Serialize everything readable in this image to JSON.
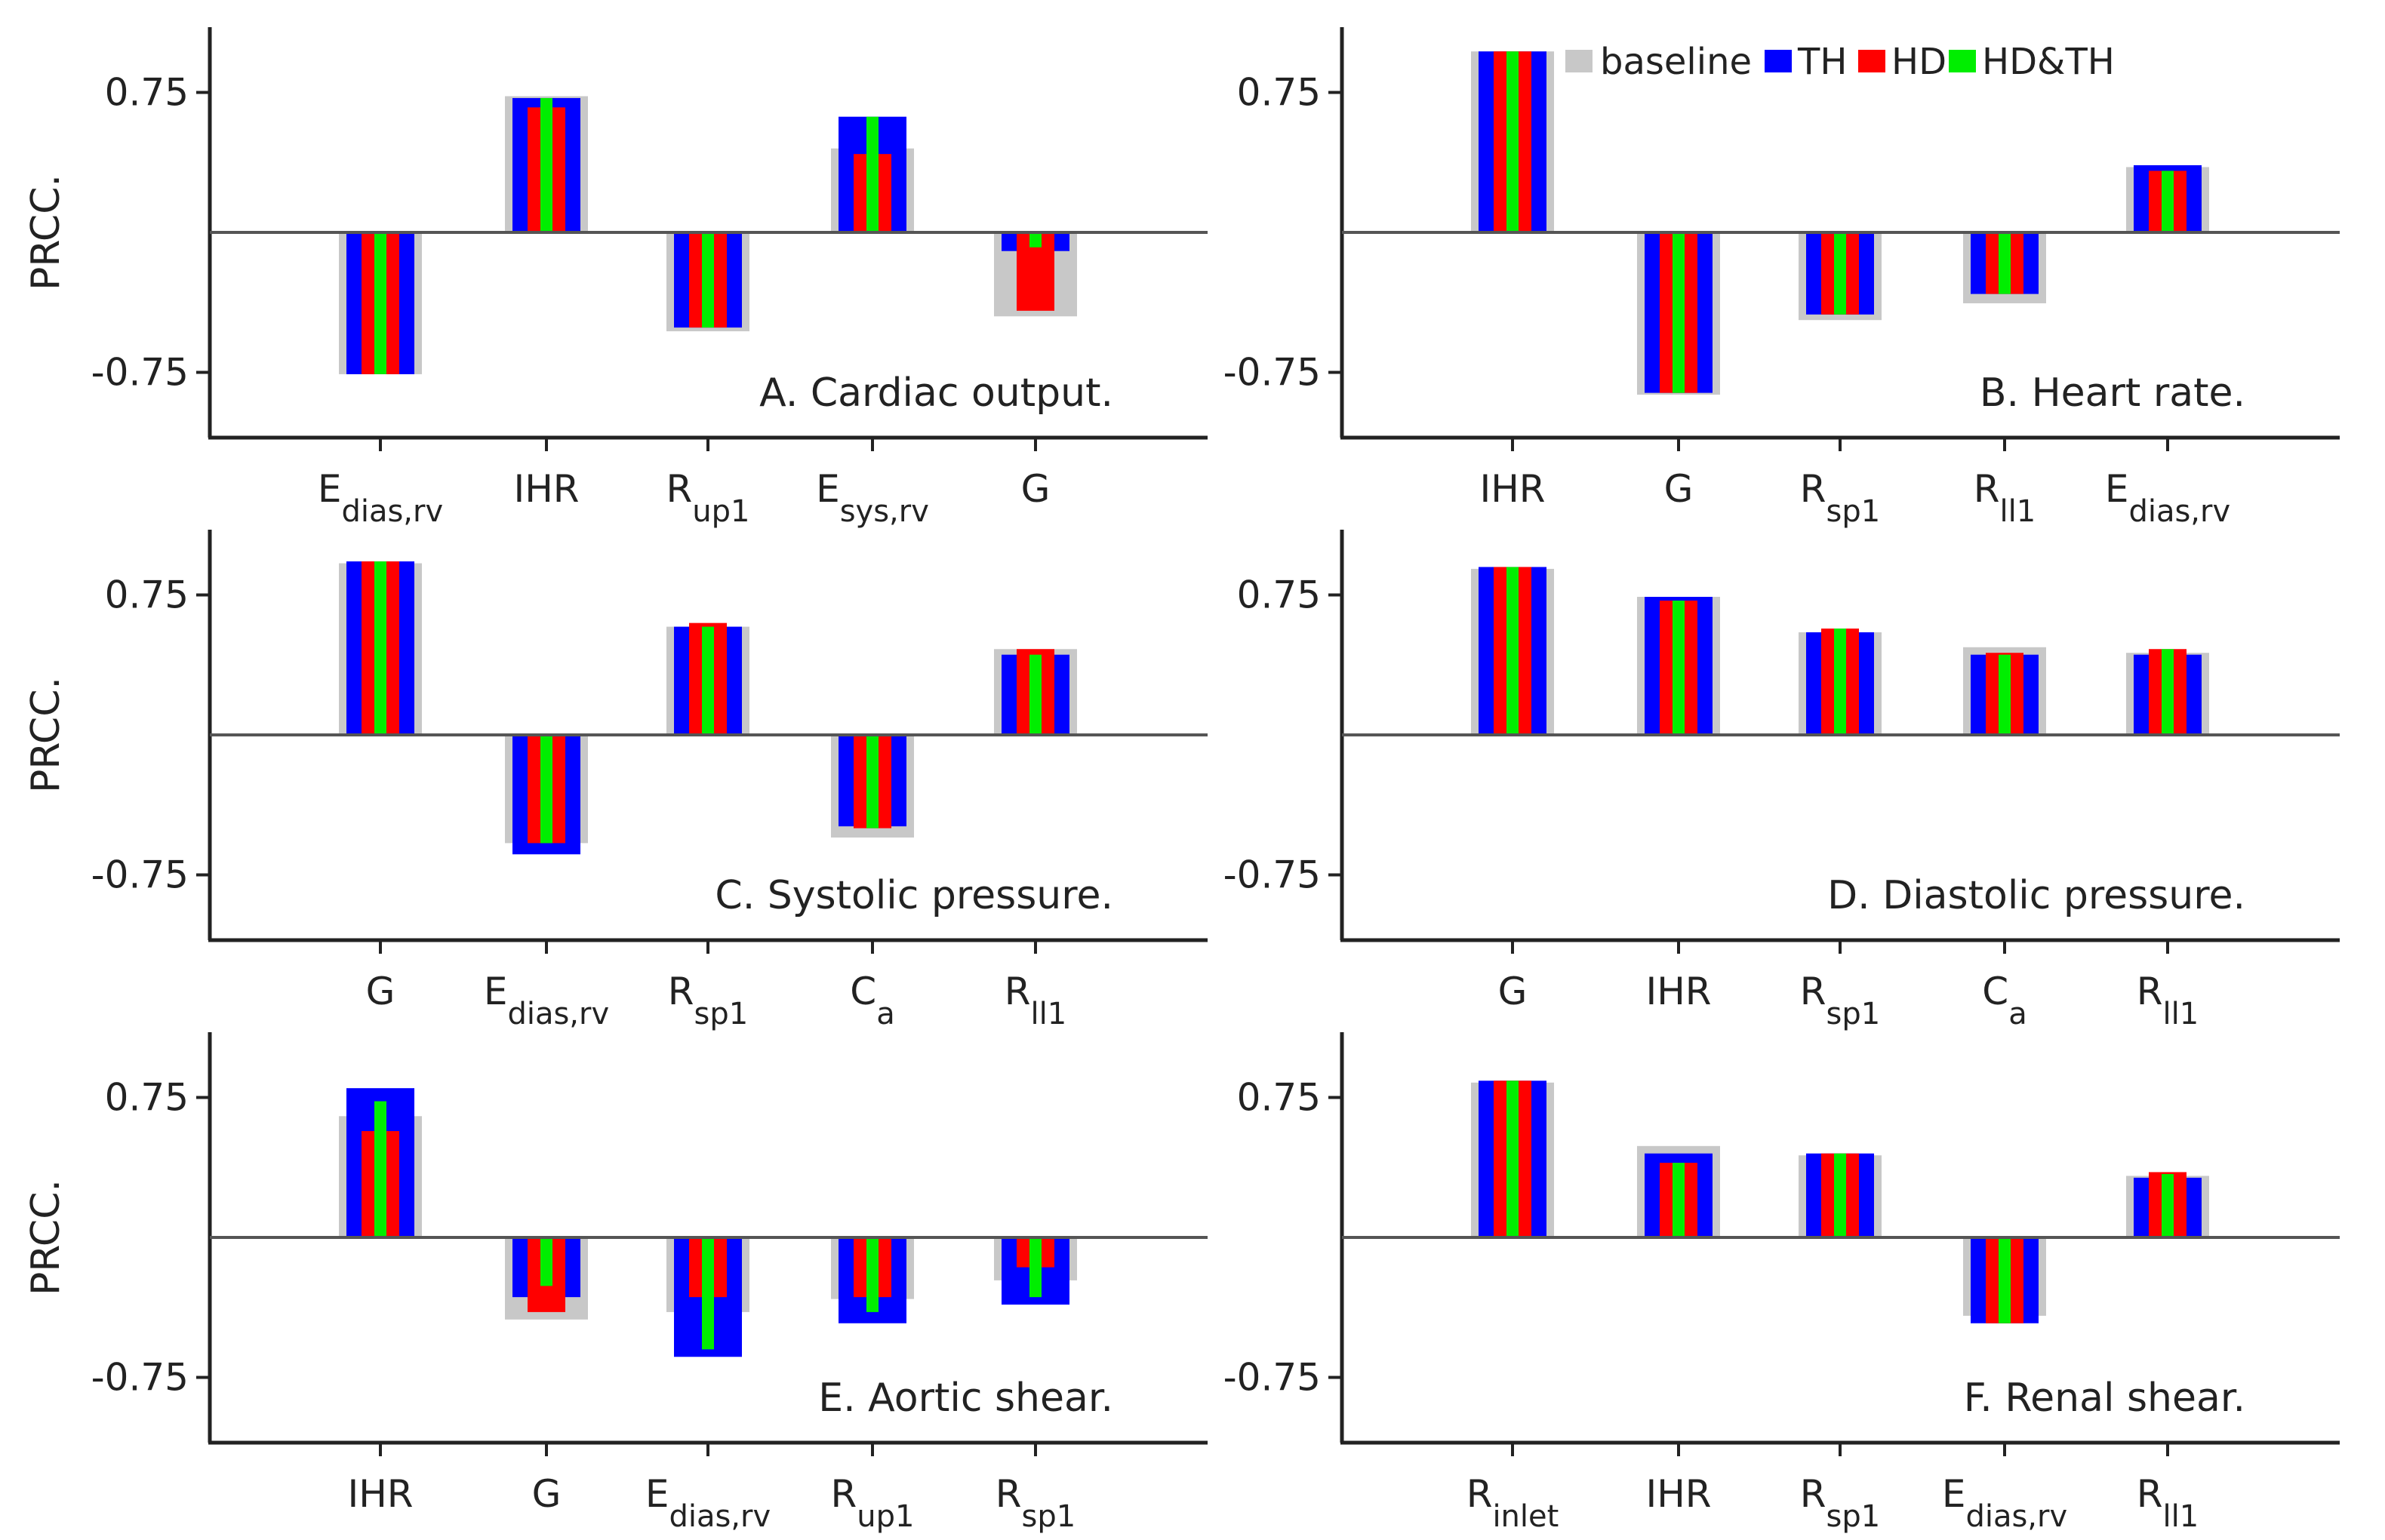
{
  "legend": {
    "entries": [
      {
        "key": "baseline",
        "label": "baseline",
        "color": "#c8c8c8"
      },
      {
        "key": "TH",
        "label": "TH",
        "color": "#0000ff"
      },
      {
        "key": "HD",
        "label": "HD",
        "color": "#ff0000"
      },
      {
        "key": "HDTH",
        "label": "HD&TH",
        "color": "#00ee00"
      }
    ]
  },
  "chart_data": [
    {
      "type": "bar",
      "title": "A. Cardiac output.",
      "ylabel": "PRCC.",
      "yticks": [
        "0.75",
        "-0.75"
      ],
      "ylim": [
        -1.1,
        1.1
      ],
      "categories": [
        {
          "main": "E",
          "sub": "dias,rv"
        },
        {
          "main": "IHR",
          "sub": ""
        },
        {
          "main": "R",
          "sub": "up1"
        },
        {
          "main": "E",
          "sub": "sys,rv"
        },
        {
          "main": "G",
          "sub": ""
        }
      ],
      "series": [
        {
          "name": "baseline",
          "values": [
            -0.76,
            0.73,
            -0.53,
            0.45,
            -0.45
          ]
        },
        {
          "name": "TH",
          "values": [
            -0.76,
            0.72,
            -0.51,
            0.62,
            -0.1
          ]
        },
        {
          "name": "HD",
          "values": [
            -0.76,
            0.67,
            -0.51,
            0.42,
            -0.42
          ]
        },
        {
          "name": "HD&TH",
          "values": [
            -0.76,
            0.72,
            -0.51,
            0.62,
            -0.08
          ]
        }
      ]
    },
    {
      "type": "bar",
      "title": "B. Heart rate.",
      "ylabel": "",
      "yticks": [
        "0.75",
        "-0.75"
      ],
      "ylim": [
        -1.1,
        1.1
      ],
      "categories": [
        {
          "main": "IHR",
          "sub": ""
        },
        {
          "main": "G",
          "sub": ""
        },
        {
          "main": "R",
          "sub": "sp1"
        },
        {
          "main": "R",
          "sub": "ll1"
        },
        {
          "main": "E",
          "sub": "dias,rv"
        }
      ],
      "series": [
        {
          "name": "baseline",
          "values": [
            0.97,
            -0.87,
            -0.47,
            -0.38,
            0.35
          ]
        },
        {
          "name": "TH",
          "values": [
            0.97,
            -0.86,
            -0.44,
            -0.33,
            0.36
          ]
        },
        {
          "name": "HD",
          "values": [
            0.97,
            -0.86,
            -0.44,
            -0.33,
            0.33
          ]
        },
        {
          "name": "HD&TH",
          "values": [
            0.97,
            -0.86,
            -0.44,
            -0.33,
            0.33
          ]
        }
      ]
    },
    {
      "type": "bar",
      "title": "C. Systolic pressure.",
      "ylabel": "PRCC.",
      "yticks": [
        "0.75",
        "-0.75"
      ],
      "ylim": [
        -1.1,
        1.1
      ],
      "categories": [
        {
          "main": "G",
          "sub": ""
        },
        {
          "main": "E",
          "sub": "dias,rv"
        },
        {
          "main": "R",
          "sub": "sp1"
        },
        {
          "main": "C",
          "sub": "a"
        },
        {
          "main": "R",
          "sub": "ll1"
        }
      ],
      "series": [
        {
          "name": "baseline",
          "values": [
            0.92,
            -0.58,
            0.58,
            -0.55,
            0.46
          ]
        },
        {
          "name": "TH",
          "values": [
            0.93,
            -0.64,
            0.58,
            -0.49,
            0.43
          ]
        },
        {
          "name": "HD",
          "values": [
            0.93,
            -0.58,
            0.6,
            -0.5,
            0.46
          ]
        },
        {
          "name": "HD&TH",
          "values": [
            0.93,
            -0.58,
            0.58,
            -0.5,
            0.43
          ]
        }
      ]
    },
    {
      "type": "bar",
      "title": "D. Diastolic pressure.",
      "ylabel": "",
      "yticks": [
        "0.75",
        "-0.75"
      ],
      "ylim": [
        -1.1,
        1.1
      ],
      "categories": [
        {
          "main": "G",
          "sub": ""
        },
        {
          "main": "IHR",
          "sub": ""
        },
        {
          "main": "R",
          "sub": "sp1"
        },
        {
          "main": "C",
          "sub": "a"
        },
        {
          "main": "R",
          "sub": "ll1"
        }
      ],
      "series": [
        {
          "name": "baseline",
          "values": [
            0.89,
            0.74,
            0.55,
            0.47,
            0.44
          ]
        },
        {
          "name": "TH",
          "values": [
            0.9,
            0.74,
            0.55,
            0.43,
            0.43
          ]
        },
        {
          "name": "HD",
          "values": [
            0.9,
            0.72,
            0.57,
            0.44,
            0.46
          ]
        },
        {
          "name": "HD&TH",
          "values": [
            0.9,
            0.72,
            0.57,
            0.43,
            0.46
          ]
        }
      ]
    },
    {
      "type": "bar",
      "title": "E. Aortic shear.",
      "ylabel": "PRCC.",
      "yticks": [
        "0.75",
        "-0.75"
      ],
      "ylim": [
        -1.1,
        1.1
      ],
      "categories": [
        {
          "main": "IHR",
          "sub": ""
        },
        {
          "main": "G",
          "sub": ""
        },
        {
          "main": "E",
          "sub": "dias,rv"
        },
        {
          "main": "R",
          "sub": "up1"
        },
        {
          "main": "R",
          "sub": "sp1"
        }
      ],
      "series": [
        {
          "name": "baseline",
          "values": [
            0.65,
            -0.44,
            -0.4,
            -0.33,
            -0.23
          ]
        },
        {
          "name": "TH",
          "values": [
            0.8,
            -0.32,
            -0.64,
            -0.46,
            -0.36
          ]
        },
        {
          "name": "HD",
          "values": [
            0.57,
            -0.4,
            -0.32,
            -0.32,
            -0.16
          ]
        },
        {
          "name": "HD&TH",
          "values": [
            0.73,
            -0.26,
            -0.6,
            -0.4,
            -0.32
          ]
        }
      ]
    },
    {
      "type": "bar",
      "title": "F. Renal shear.",
      "ylabel": "",
      "yticks": [
        "0.75",
        "-0.75"
      ],
      "ylim": [
        -1.1,
        1.1
      ],
      "categories": [
        {
          "main": "R",
          "sub": "inlet"
        },
        {
          "main": "IHR",
          "sub": ""
        },
        {
          "main": "R",
          "sub": "sp1"
        },
        {
          "main": "E",
          "sub": "dias,rv"
        },
        {
          "main": "R",
          "sub": "ll1"
        }
      ],
      "series": [
        {
          "name": "baseline",
          "values": [
            0.83,
            0.49,
            0.44,
            -0.42,
            0.33
          ]
        },
        {
          "name": "TH",
          "values": [
            0.84,
            0.45,
            0.45,
            -0.46,
            0.32
          ]
        },
        {
          "name": "HD",
          "values": [
            0.84,
            0.4,
            0.45,
            -0.46,
            0.35
          ]
        },
        {
          "name": "HD&TH",
          "values": [
            0.84,
            0.4,
            0.45,
            -0.46,
            0.34
          ]
        }
      ]
    }
  ]
}
